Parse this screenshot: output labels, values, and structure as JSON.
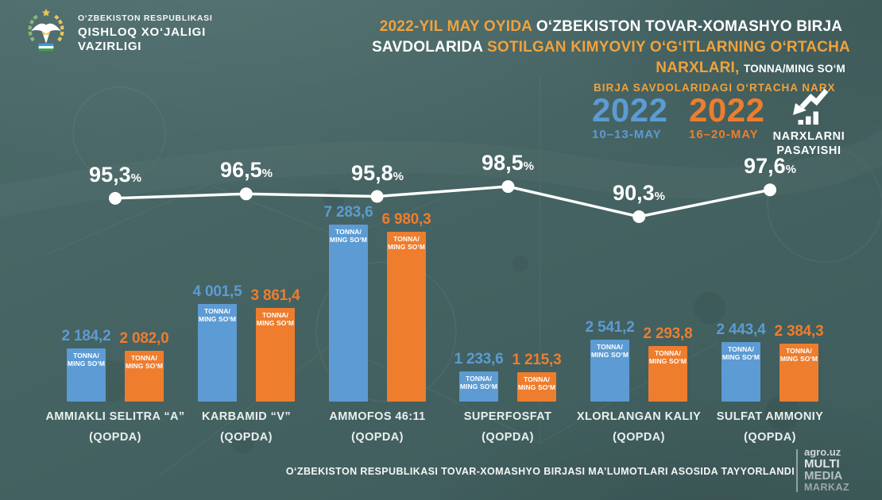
{
  "header": {
    "ministry": {
      "line1": "O‘ZBEKISTON RESPUBLIKASI",
      "line2": "QISHLOQ XO‘JALIGI",
      "line3": "VAZIRLIGI"
    },
    "title": {
      "l1_accent": "2022-YIL MAY OYIDA ",
      "l1_rest": "O‘ZBEKISTON TOVAR-XOMASHYO BIRJA",
      "l2_rest": "SAVDOLARIDA ",
      "l2_accent": "SOTILGAN KIMYOVIY O‘G‘ITLARNING O‘RTACHA",
      "l3_accent": "NARXLARI, ",
      "l3_unit": "TONNA/MING SO‘M"
    }
  },
  "legend": {
    "label": "BIRJA SAVDOLARIDAGI O‘RTACHA NARX",
    "series": [
      {
        "year": "2022",
        "range": "10–13-MAY"
      },
      {
        "year": "2022",
        "range": "16–20-MAY"
      }
    ],
    "decrease_line1": "NARXLARNI",
    "decrease_line2": "PASAYISHI"
  },
  "chart_data": {
    "type": "grouped_bar_with_line",
    "title": "2022-yil may oyida O‘zbekiston tovar-xomashyo birja savdolarida sotilgan kimyoviy o‘g‘itlarning o‘rtacha narxlari",
    "ylabel": "TONNA/MING SO‘M",
    "unit_lines": [
      "TONNA/",
      "MING SO‘M"
    ],
    "categories": [
      {
        "name": "AMMIAKLI SELITRA “A”",
        "sub": "(QOPDA)"
      },
      {
        "name": "KARBAMID “V”",
        "sub": "(QOPDA)"
      },
      {
        "name": "AMMOFOS 46:11",
        "sub": "(QOPDA)"
      },
      {
        "name": "SUPERFOSFAT",
        "sub": "(QOPDA)"
      },
      {
        "name": "XLORLANGAN KALIY",
        "sub": "(QOPDA)"
      },
      {
        "name": "SULFAT AMMONIY",
        "sub": "(QOPDA)"
      }
    ],
    "series": [
      {
        "name": "2022 10–13-MAY",
        "color": "#5c9bd3",
        "values": [
          2184.2,
          4001.5,
          7283.6,
          1233.6,
          2541.2,
          2443.4
        ],
        "labels": [
          "2 184,2",
          "4 001,5",
          "7 283,6",
          "1 233,6",
          "2 541,2",
          "2 443,4"
        ]
      },
      {
        "name": "2022 16–20-MAY",
        "color": "#ee7d2e",
        "values": [
          2082.0,
          3861.4,
          6980.3,
          1215.3,
          2293.8,
          2384.3
        ],
        "labels": [
          "2 082,0",
          "3 861,4",
          "6 980,3",
          "1 215,3",
          "2 293,8",
          "2 384,3"
        ]
      }
    ],
    "line": {
      "name": "NARXLARNI PASAYISHI",
      "unit": "%",
      "values": [
        95.3,
        96.5,
        95.8,
        98.5,
        90.3,
        97.6
      ],
      "labels": [
        "95,3",
        "96,5",
        "95,8",
        "98,5",
        "90,3",
        "97,6"
      ]
    }
  },
  "footer": {
    "source": "O‘ZBEKISTON RESPUBLIKASI TOVAR-XOMASHYO BIRJASI MA’LUMOTLARI ASOSIDA TAYYORLANDI",
    "watermark": {
      "site": "agro.uz",
      "l1": "MULTI",
      "l2": "MEDIA",
      "l3": "MARKAZ"
    }
  },
  "colors": {
    "background": "#456362",
    "accent_gold": "#f0a23c",
    "series1_blue": "#5c9bd3",
    "series2_orange": "#ee7d2e",
    "line_white": "#ffffff"
  }
}
